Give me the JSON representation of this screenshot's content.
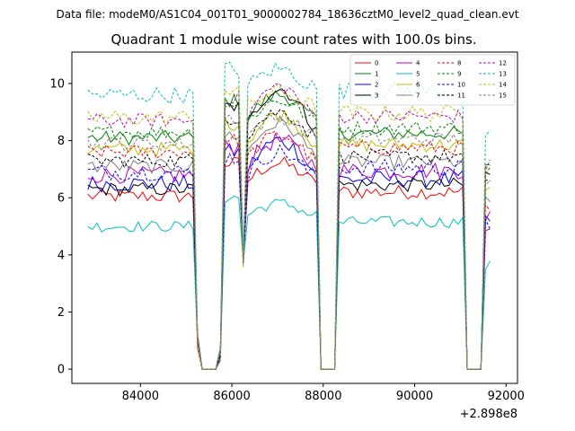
{
  "figure": {
    "suptitle": "Data file: modeM0/AS1C04_001T01_9000002784_18636cztM0_level2_quad_clean.evt"
  },
  "chart_data": {
    "type": "line",
    "title": "Quadrant 1 module wise count rates with 100.0s bins.",
    "xlabel": "",
    "ylabel": "",
    "x_offset_label": "+2.898e8",
    "x_offset": 289800000,
    "xlim": [
      82500,
      92250
    ],
    "ylim": [
      -0.5,
      11.1
    ],
    "xticks": [
      84000,
      86000,
      88000,
      90000,
      92000
    ],
    "xtick_labels": [
      "84000",
      "86000",
      "88000",
      "90000",
      "92000"
    ],
    "yticks": [
      0,
      2,
      4,
      6,
      8,
      10
    ],
    "ytick_labels": [
      "0",
      "2",
      "4",
      "6",
      "8",
      "10"
    ],
    "grid": false,
    "legend_position": "upper right",
    "legend_columns": 4,
    "segments": [
      {
        "start": 82850,
        "end": 85150,
        "step": 100
      },
      {
        "start": 85850,
        "end": 86150,
        "step": 100
      },
      {
        "start": 86350,
        "end": 87850,
        "step": 100
      },
      {
        "start": 88350,
        "end": 91050,
        "step": 100
      },
      {
        "start": 91550,
        "end": 91650,
        "step": 100
      }
    ],
    "gap_points": [
      [
        85250,
        1.0
      ],
      [
        85350,
        0
      ],
      [
        85450,
        0
      ],
      [
        85550,
        0
      ],
      [
        85650,
        0
      ],
      [
        85750,
        0.5
      ],
      [
        86250,
        3.8
      ],
      [
        87950,
        0
      ],
      [
        88050,
        0
      ],
      [
        88150,
        0
      ],
      [
        88250,
        0
      ],
      [
        91150,
        0
      ],
      [
        91250,
        0
      ],
      [
        91350,
        0
      ],
      [
        91450,
        0
      ]
    ],
    "series": [
      {
        "name": "0",
        "color": "#ff0000",
        "dashed": false,
        "base": 6.05,
        "peak": 7.2,
        "mid": 6.6,
        "noise": 0.25
      },
      {
        "name": "1",
        "color": "#008000",
        "dashed": false,
        "base": 8.1,
        "peak": 9.6,
        "mid": 8.8,
        "noise": 0.25
      },
      {
        "name": "2",
        "color": "#0000ff",
        "dashed": false,
        "base": 6.5,
        "peak": 8.0,
        "mid": 7.0,
        "noise": 0.3
      },
      {
        "name": "3",
        "color": "#000000",
        "dashed": false,
        "base": 6.3,
        "peak": 9.8,
        "mid": 8.6,
        "noise": 0.25
      },
      {
        "name": "4",
        "color": "#bf00bf",
        "dashed": false,
        "base": 6.8,
        "peak": 8.0,
        "mid": 7.2,
        "noise": 0.3
      },
      {
        "name": "5",
        "color": "#00bfbf",
        "dashed": false,
        "base": 5.0,
        "peak": 5.8,
        "mid": 5.4,
        "noise": 0.2
      },
      {
        "name": "6",
        "color": "#bfbf00",
        "dashed": false,
        "base": 7.7,
        "peak": 8.9,
        "mid": 8.0,
        "noise": 0.25
      },
      {
        "name": "7",
        "color": "#808080",
        "dashed": false,
        "base": 7.1,
        "peak": 8.6,
        "mid": 7.6,
        "noise": 0.25
      },
      {
        "name": "8",
        "color": "#ff0000",
        "dashed": true,
        "base": 7.6,
        "peak": 8.2,
        "mid": 7.4,
        "noise": 0.25
      },
      {
        "name": "9",
        "color": "#008000",
        "dashed": true,
        "base": 8.3,
        "peak": 9.4,
        "mid": 8.7,
        "noise": 0.25
      },
      {
        "name": "10",
        "color": "#0000ff",
        "dashed": true,
        "base": 6.9,
        "peak": 7.6,
        "mid": 6.8,
        "noise": 0.3
      },
      {
        "name": "11",
        "color": "#000000",
        "dashed": true,
        "base": 7.3,
        "peak": 9.0,
        "mid": 8.2,
        "noise": 0.25
      },
      {
        "name": "12",
        "color": "#bf00bf",
        "dashed": true,
        "base": 8.7,
        "peak": 9.9,
        "mid": 8.9,
        "noise": 0.25
      },
      {
        "name": "13",
        "color": "#00bfbf",
        "dashed": true,
        "base": 9.6,
        "peak": 10.5,
        "mid": 9.9,
        "noise": 0.3
      },
      {
        "name": "14",
        "color": "#bfbf00",
        "dashed": true,
        "base": 8.8,
        "peak": 9.7,
        "mid": 9.2,
        "noise": 0.3
      },
      {
        "name": "15",
        "color": "#808080",
        "dashed": true,
        "base": 7.9,
        "peak": 8.8,
        "mid": 8.2,
        "noise": 0.25
      }
    ]
  }
}
